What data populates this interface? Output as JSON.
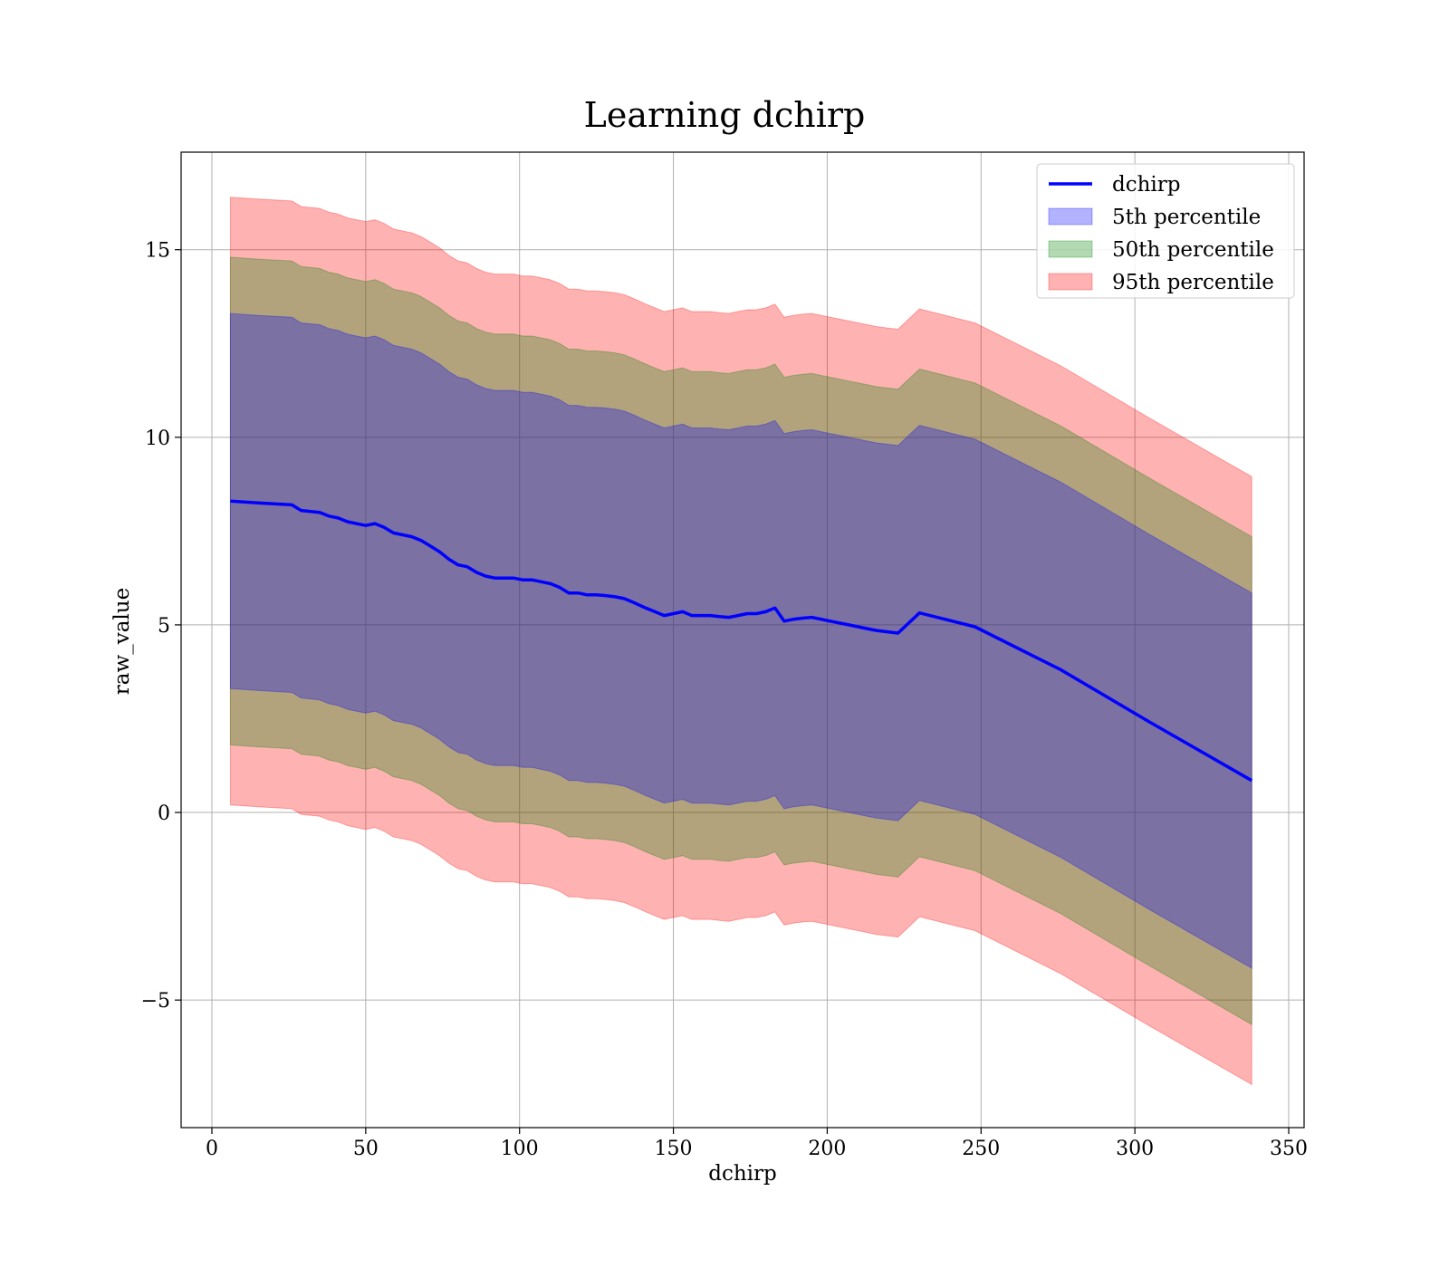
{
  "chart_data": {
    "type": "area",
    "title": "Learning dchirp",
    "xlabel": "dchirp",
    "ylabel": "raw_value",
    "xlim": [
      -10,
      355
    ],
    "ylim": [
      -8.4,
      17.6
    ],
    "xticks": [
      0,
      50,
      100,
      150,
      200,
      250,
      300,
      350
    ],
    "yticks": [
      -5,
      0,
      5,
      10,
      15
    ],
    "xtick_labels": [
      "0",
      "50",
      "100",
      "150",
      "200",
      "250",
      "300",
      "350"
    ],
    "ytick_labels": [
      "−5",
      "0",
      "5",
      "10",
      "15"
    ],
    "grid": true,
    "legend_position": "top-right",
    "x": [
      6,
      15,
      26,
      29,
      35,
      38,
      41,
      44,
      47,
      50,
      53,
      56,
      59,
      62,
      65,
      68,
      71,
      74,
      77,
      80,
      83,
      86,
      89,
      92,
      95,
      98,
      101,
      104,
      107,
      110,
      113,
      116,
      119,
      122,
      125,
      128,
      131,
      134,
      137,
      141,
      144,
      147,
      150,
      153,
      156,
      159,
      162,
      165,
      168,
      171,
      174,
      177,
      180,
      183,
      186,
      189,
      192,
      195,
      198,
      201,
      204,
      207,
      210,
      213,
      216,
      219,
      223,
      230,
      248,
      276,
      305,
      338
    ],
    "series": [
      {
        "name": "dchirp",
        "kind": "line",
        "color": "#0000ff",
        "values": [
          8.3,
          8.25,
          8.2,
          8.05,
          8.0,
          7.9,
          7.85,
          7.75,
          7.7,
          7.65,
          7.7,
          7.6,
          7.45,
          7.4,
          7.35,
          7.25,
          7.1,
          6.95,
          6.75,
          6.6,
          6.55,
          6.4,
          6.3,
          6.25,
          6.25,
          6.25,
          6.2,
          6.2,
          6.15,
          6.1,
          6.0,
          5.85,
          5.85,
          5.8,
          5.8,
          5.78,
          5.75,
          5.7,
          5.6,
          5.45,
          5.35,
          5.25,
          5.3,
          5.35,
          5.25,
          5.25,
          5.25,
          5.22,
          5.2,
          5.25,
          5.3,
          5.3,
          5.35,
          5.45,
          5.1,
          5.15,
          5.18,
          5.2,
          5.15,
          5.1,
          5.05,
          5.0,
          4.95,
          4.9,
          4.85,
          4.82,
          4.78,
          5.32,
          4.95,
          3.8,
          2.4,
          0.85
        ]
      },
      {
        "name": "5th percentile",
        "kind": "band",
        "color": "#0000ff",
        "offset": 5.0
      },
      {
        "name": "50th percentile",
        "kind": "band",
        "color": "#008000",
        "offset": 6.5
      },
      {
        "name": "95th percentile",
        "kind": "band",
        "color": "#ff0000",
        "offset": 8.1
      }
    ]
  }
}
